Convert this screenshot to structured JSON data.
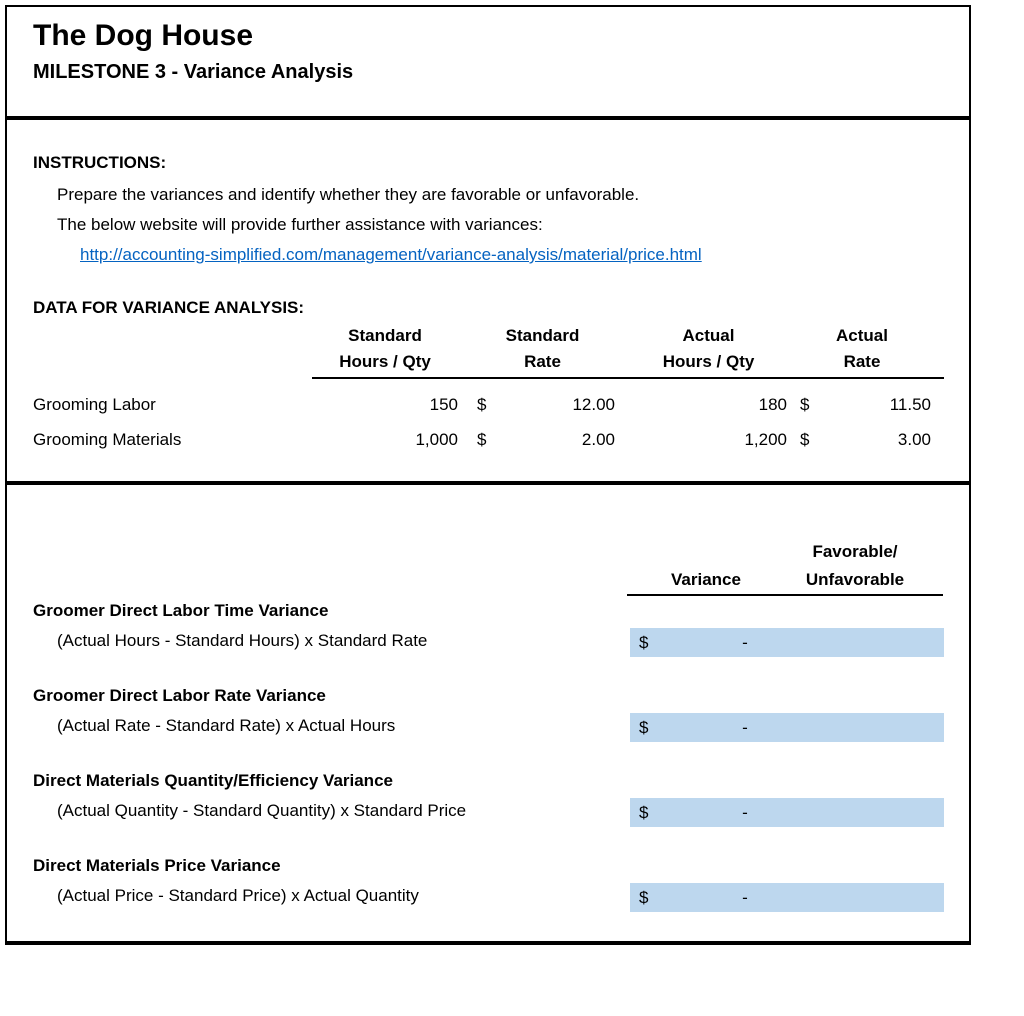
{
  "header": {
    "title": "The Dog House",
    "subtitle": "MILESTONE 3 - Variance Analysis"
  },
  "instructions": {
    "heading": "INSTRUCTIONS:",
    "lines": [
      "Prepare the variances and identify whether they are favorable or unfavorable.",
      "The below website will provide further assistance with variances:"
    ],
    "link": "http://accounting-simplified.com/management/variance-analysis/material/price.html"
  },
  "data_table": {
    "heading": "DATA FOR VARIANCE ANALYSIS:",
    "columns": [
      {
        "line1": "Standard",
        "line2": "Hours / Qty"
      },
      {
        "line1": "Standard",
        "line2": "Rate"
      },
      {
        "line1": "Actual",
        "line2": "Hours / Qty"
      },
      {
        "line1": "Actual",
        "line2": "Rate"
      }
    ],
    "rows": [
      {
        "label": "Grooming Labor",
        "standard_qty": "150",
        "standard_rate_currency": "$",
        "standard_rate": "12.00",
        "actual_qty": "180",
        "actual_rate_currency": "$",
        "actual_rate": "11.50"
      },
      {
        "label": "Grooming Materials",
        "standard_qty": "1,000",
        "standard_rate_currency": "$",
        "standard_rate": "2.00",
        "actual_qty": "1,200",
        "actual_rate_currency": "$",
        "actual_rate": "3.00"
      }
    ]
  },
  "variance_section": {
    "col_variance": "Variance",
    "col_favorable_line1": "Favorable/",
    "col_favorable_line2": "Unfavorable",
    "blocks": [
      {
        "title": "Groomer Direct Labor Time Variance",
        "formula": "(Actual Hours - Standard Hours) x Standard Rate",
        "currency": "$",
        "value": "-"
      },
      {
        "title": "Groomer Direct Labor Rate Variance",
        "formula": "(Actual Rate - Standard Rate) x Actual Hours",
        "currency": "$",
        "value": "-"
      },
      {
        "title": "Direct Materials Quantity/Efficiency Variance",
        "formula": "(Actual Quantity - Standard Quantity) x Standard Price",
        "currency": "$",
        "value": "-"
      },
      {
        "title": "Direct Materials Price Variance",
        "formula": "(Actual Price - Standard Price) x Actual Quantity",
        "currency": "$",
        "value": "-"
      }
    ]
  },
  "colors": {
    "input_cell_bg": "#BDD7EE",
    "link": "#0563C1",
    "border": "#000000"
  }
}
